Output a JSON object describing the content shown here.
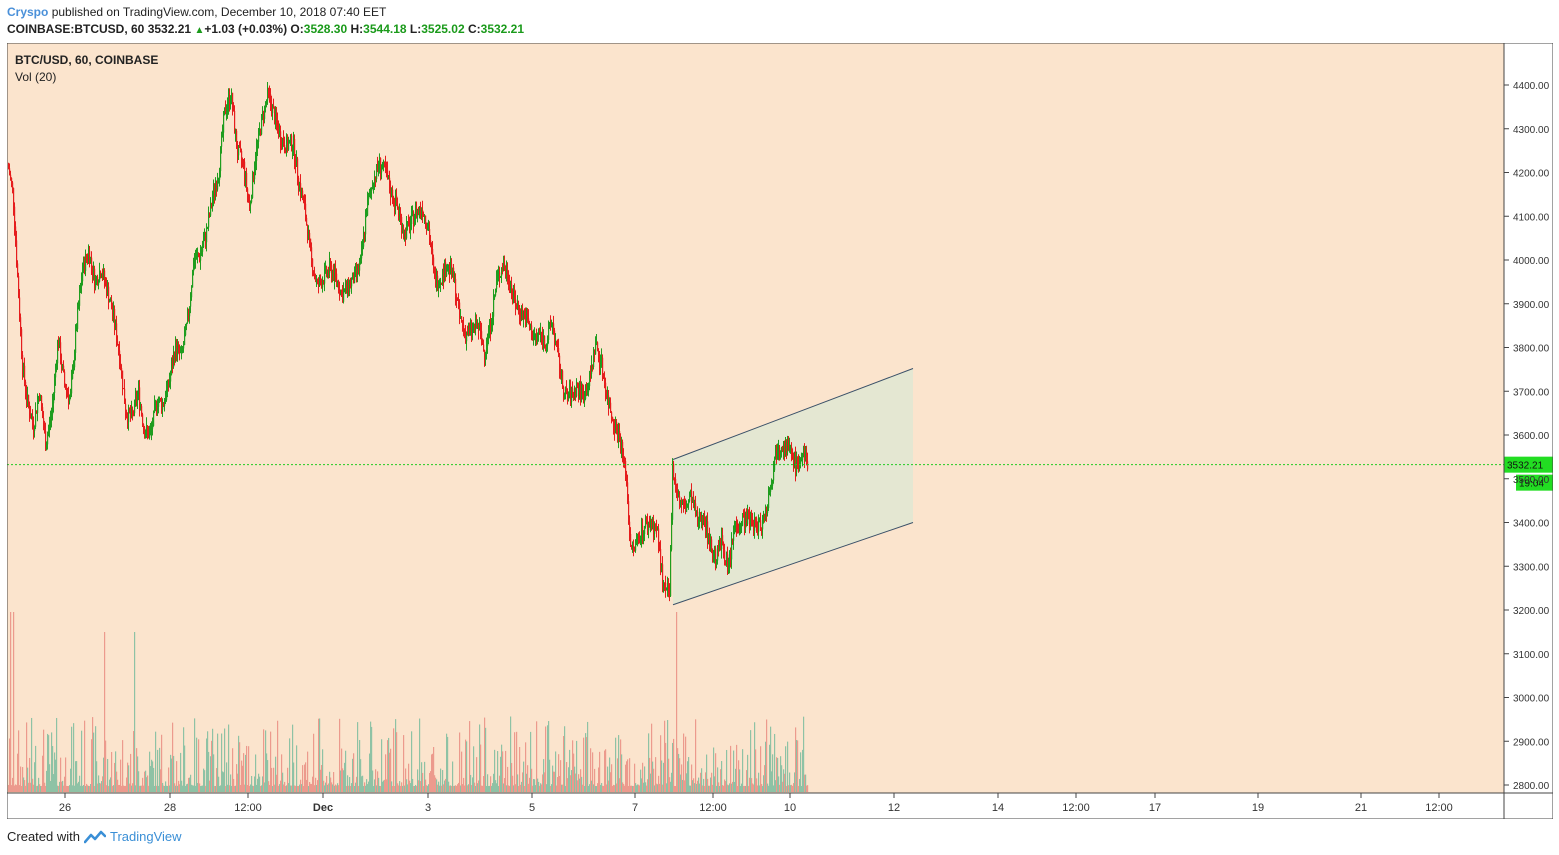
{
  "header": {
    "author": "Cryspo",
    "published_text": "published on TradingView.com, December 10, 2018 07:40 EET",
    "symbol": "COINBASE:BTCUSD, 60",
    "last": "3532.21",
    "change": "+1.03 (+0.03%)",
    "o_label": "O:",
    "o_value": "3528.30",
    "h_label": "H:",
    "h_value": "3544.18",
    "l_label": "L:",
    "l_value": "3525.02",
    "c_label": "C:",
    "c_value": "3532.21"
  },
  "legend": {
    "title": "BTC/USD, 60, COINBASE",
    "volume": "Vol (20)"
  },
  "footer": {
    "created_with": "Created with",
    "brand": "TradingView"
  },
  "colors": {
    "background": "#fbe4cd",
    "up": "#1f9d1f",
    "down": "#e51d1d",
    "vol_up": "#8ec2a5",
    "vol_down": "#ec9a8d",
    "channel_fill": "#dfe8d2",
    "channel_line": "#3a5068",
    "price_line": "#22cc22",
    "price_label_bg": "#22dd22"
  },
  "chart_data": {
    "type": "candlestick",
    "price_axis": {
      "ticks": [
        "4400.00",
        "4300.00",
        "4200.00",
        "4100.00",
        "4000.00",
        "3900.00",
        "3800.00",
        "3700.00",
        "3600.00",
        "3500.00",
        "3400.00",
        "3300.00",
        "3200.00",
        "3100.00",
        "3000.00",
        "2900.00",
        "2800.00"
      ],
      "tick_values": [
        4400,
        4300,
        4200,
        4100,
        4000,
        3900,
        3800,
        3700,
        3600,
        3500,
        3400,
        3300,
        3200,
        3100,
        3000,
        2900,
        2800
      ],
      "range": [
        2770,
        4435
      ]
    },
    "time_axis": {
      "labels": [
        "26",
        "28",
        "12:00",
        "Dec",
        "3",
        "5",
        "7",
        "12:00",
        "10",
        "12",
        "14",
        "12:00",
        "17",
        "19",
        "21",
        "12:00"
      ],
      "bold": [
        "Dec"
      ]
    },
    "last_price": {
      "value": 3532.21,
      "label": "3532.21",
      "countdown": "19:04"
    },
    "channel": {
      "upper": [
        [
          3544,
          3752
        ],
        [
          3744,
          3752
        ]
      ],
      "lower": [
        [
          3212,
          3400
        ],
        [
          3212,
          3400
        ]
      ]
    },
    "series": [
      {
        "name": "BTC/USD",
        "ohlc_anchor": [
          [
            0,
            4210
          ],
          [
            3,
            4150
          ],
          [
            6,
            3950
          ],
          [
            9,
            3760
          ],
          [
            12,
            3680
          ],
          [
            16,
            3620
          ],
          [
            20,
            3700
          ],
          [
            24,
            3580
          ],
          [
            28,
            3650
          ],
          [
            32,
            3820
          ],
          [
            36,
            3720
          ],
          [
            40,
            3680
          ],
          [
            44,
            3850
          ],
          [
            48,
            3980
          ],
          [
            52,
            4020
          ],
          [
            56,
            3950
          ],
          [
            60,
            3980
          ],
          [
            64,
            3930
          ],
          [
            68,
            3870
          ],
          [
            72,
            3780
          ],
          [
            76,
            3650
          ],
          [
            80,
            3640
          ],
          [
            84,
            3700
          ],
          [
            88,
            3610
          ],
          [
            92,
            3600
          ],
          [
            96,
            3680
          ],
          [
            100,
            3670
          ],
          [
            104,
            3720
          ],
          [
            108,
            3800
          ],
          [
            112,
            3780
          ],
          [
            116,
            3860
          ],
          [
            120,
            4000
          ],
          [
            124,
            4010
          ],
          [
            128,
            4060
          ],
          [
            132,
            4140
          ],
          [
            136,
            4200
          ],
          [
            140,
            4340
          ],
          [
            144,
            4380
          ],
          [
            148,
            4250
          ],
          [
            152,
            4220
          ],
          [
            156,
            4120
          ],
          [
            160,
            4240
          ],
          [
            164,
            4320
          ],
          [
            168,
            4380
          ],
          [
            172,
            4330
          ],
          [
            176,
            4280
          ],
          [
            180,
            4260
          ],
          [
            184,
            4270
          ],
          [
            188,
            4180
          ],
          [
            192,
            4110
          ],
          [
            196,
            4000
          ],
          [
            200,
            3940
          ],
          [
            204,
            3960
          ],
          [
            208,
            3980
          ],
          [
            212,
            3960
          ],
          [
            216,
            3920
          ],
          [
            220,
            3940
          ],
          [
            224,
            3960
          ],
          [
            228,
            3990
          ],
          [
            232,
            4120
          ],
          [
            236,
            4180
          ],
          [
            240,
            4220
          ],
          [
            244,
            4200
          ],
          [
            248,
            4150
          ],
          [
            252,
            4120
          ],
          [
            256,
            4060
          ],
          [
            260,
            4080
          ],
          [
            264,
            4110
          ],
          [
            268,
            4120
          ],
          [
            272,
            4070
          ],
          [
            276,
            3950
          ],
          [
            280,
            3960
          ],
          [
            284,
            3990
          ],
          [
            288,
            3960
          ],
          [
            292,
            3870
          ],
          [
            296,
            3830
          ],
          [
            300,
            3840
          ],
          [
            304,
            3850
          ],
          [
            308,
            3790
          ],
          [
            312,
            3850
          ],
          [
            316,
            3950
          ],
          [
            320,
            3990
          ],
          [
            324,
            3960
          ],
          [
            328,
            3900
          ],
          [
            332,
            3880
          ],
          [
            336,
            3860
          ],
          [
            340,
            3820
          ],
          [
            344,
            3830
          ],
          [
            348,
            3810
          ],
          [
            352,
            3860
          ],
          [
            356,
            3770
          ],
          [
            360,
            3690
          ],
          [
            364,
            3690
          ],
          [
            368,
            3710
          ],
          [
            372,
            3690
          ],
          [
            376,
            3720
          ],
          [
            380,
            3810
          ],
          [
            384,
            3760
          ],
          [
            388,
            3680
          ],
          [
            392,
            3630
          ],
          [
            396,
            3590
          ],
          [
            400,
            3500
          ],
          [
            402,
            3380
          ],
          [
            404,
            3330
          ],
          [
            408,
            3370
          ],
          [
            412,
            3390
          ],
          [
            416,
            3400
          ],
          [
            420,
            3380
          ],
          [
            424,
            3250
          ],
          [
            428,
            3230
          ],
          [
            430,
            3530
          ],
          [
            434,
            3450
          ],
          [
            438,
            3430
          ],
          [
            442,
            3460
          ],
          [
            446,
            3400
          ],
          [
            450,
            3420
          ],
          [
            454,
            3350
          ],
          [
            458,
            3320
          ],
          [
            462,
            3360
          ],
          [
            466,
            3290
          ],
          [
            470,
            3390
          ],
          [
            474,
            3400
          ],
          [
            478,
            3410
          ],
          [
            482,
            3400
          ],
          [
            486,
            3390
          ],
          [
            490,
            3420
          ],
          [
            494,
            3500
          ],
          [
            498,
            3580
          ],
          [
            502,
            3580
          ],
          [
            506,
            3560
          ],
          [
            510,
            3530
          ],
          [
            514,
            3550
          ],
          [
            518,
            3532
          ]
        ]
      }
    ],
    "volume": {
      "name": "Vol (20)"
    }
  }
}
